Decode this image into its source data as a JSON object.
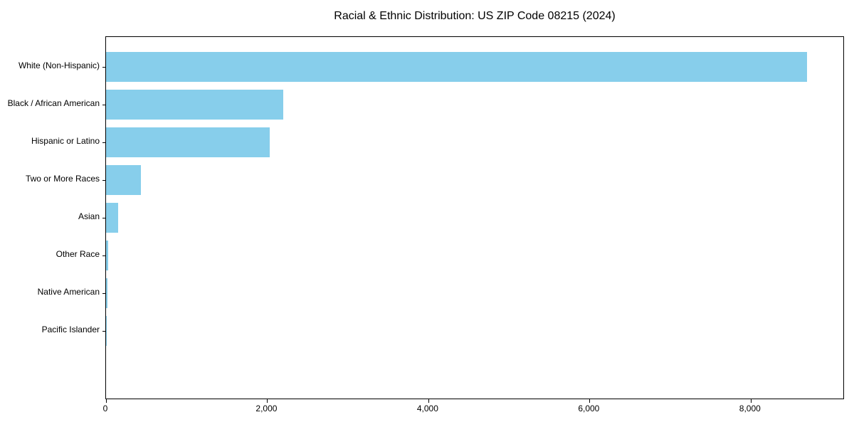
{
  "title": "Racial & Ethnic Distribution: US ZIP Code 08215 (2024)",
  "chart_data": {
    "type": "bar",
    "orientation": "horizontal",
    "title": "Racial & Ethnic Distribution: US ZIP Code 08215 (2024)",
    "xlabel": "",
    "ylabel": "",
    "categories": [
      "White (Non-Hispanic)",
      "Black / African American",
      "Hispanic or Latino",
      "Two or More Races",
      "Asian",
      "Other Race",
      "Native American",
      "Pacific Islander"
    ],
    "values": [
      8700,
      2200,
      2035,
      430,
      150,
      30,
      15,
      3
    ],
    "xlim": [
      0,
      9150
    ],
    "x_ticks": [
      0,
      2000,
      4000,
      6000,
      8000
    ],
    "x_tick_labels": [
      "0",
      "2,000",
      "4,000",
      "6,000",
      "8,000"
    ],
    "bar_color": "#87CEEB",
    "spine_color": "#000000",
    "grid": false,
    "legend": null
  }
}
